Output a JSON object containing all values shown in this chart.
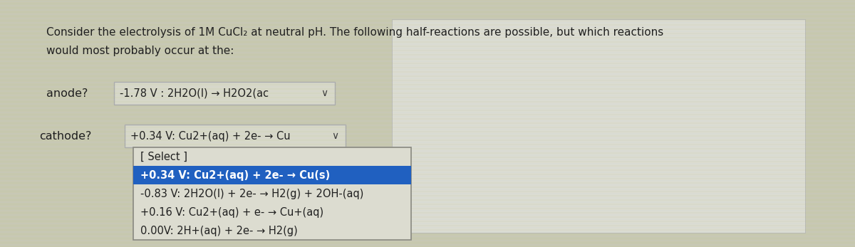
{
  "bg_color": "#c8c8b0",
  "panel_bg": "#d4d4c4",
  "white_panel_color": "#e8e8e0",
  "title_line1": "Consider the electrolysis of 1M CuCl₂ at neutral pH. The following half-reactions are possible, but which reactions",
  "title_line2": "would most probably occur at the:",
  "anode_label": "anode?",
  "anode_value": "-1.78 V : 2H2O(l) → H2O2(ac",
  "cathode_label": "cathode?",
  "cathode_value": "+0.34 V: Cu2+(aq) + 2e- → Cu",
  "dropdown_header": "[ Select ]",
  "dropdown_items": [
    "+0.34 V: Cu2+(aq) + 2e- → Cu(s)",
    "-0.83 V: 2H2O(l) + 2e- → H2(g) + 2OH-(aq)",
    "+0.16 V: Cu2+(aq) + e- → Cu+(aq)",
    "0.00V: 2H+(aq) + 2e- → H2(g)"
  ],
  "selected_item_index": 0,
  "selected_bg": "#2060c0",
  "selected_fg": "#ffffff",
  "dropdown_bg": "#dcdcd0",
  "dropdown_border": "#888880",
  "text_color": "#202020",
  "box_bg": "#d8d8c8",
  "box_border": "#aaaaaa",
  "chevron_color": "#404040",
  "grid_line_color": "#b8c8a0",
  "grid_line_color2": "#c0d0f0"
}
